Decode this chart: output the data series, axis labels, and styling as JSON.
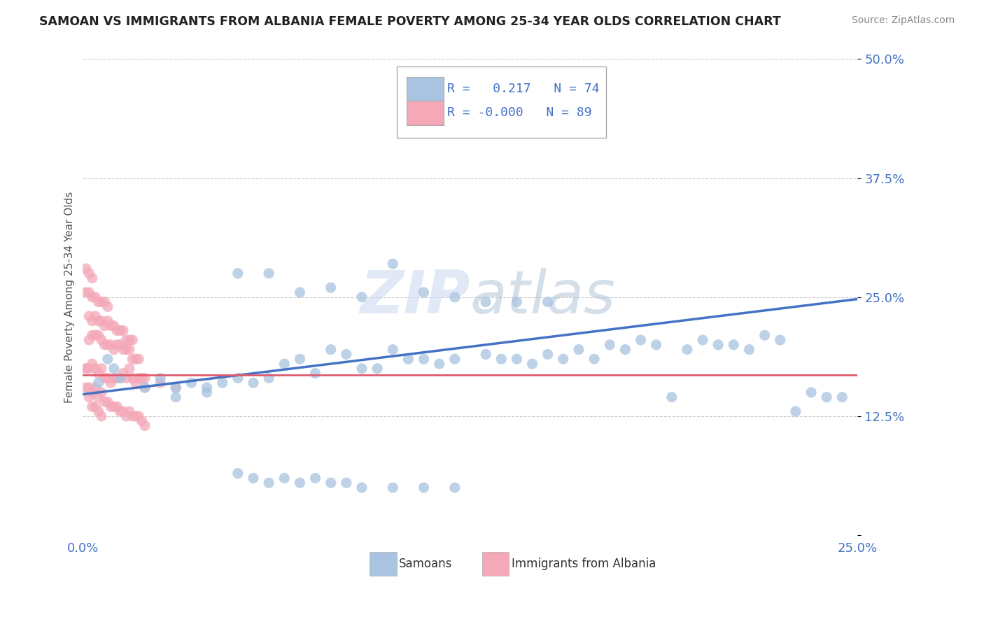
{
  "title": "SAMOAN VS IMMIGRANTS FROM ALBANIA FEMALE POVERTY AMONG 25-34 YEAR OLDS CORRELATION CHART",
  "source": "Source: ZipAtlas.com",
  "ylabel": "Female Poverty Among 25-34 Year Olds",
  "xlim": [
    0.0,
    0.25
  ],
  "ylim": [
    0.0,
    0.5
  ],
  "xticks": [
    0.0,
    0.05,
    0.1,
    0.15,
    0.2,
    0.25
  ],
  "xticklabels": [
    "0.0%",
    "",
    "",
    "",
    "",
    "25.0%"
  ],
  "yticks": [
    0.0,
    0.125,
    0.25,
    0.375,
    0.5
  ],
  "yticklabels": [
    "",
    "12.5%",
    "25.0%",
    "37.5%",
    "50.0%"
  ],
  "samoans_R": 0.217,
  "samoans_N": 74,
  "albania_R": -0.0,
  "albania_N": 89,
  "samoans_color": "#a8c4e0",
  "albania_color": "#f4a8b8",
  "trend_samoans_color": "#4472c4",
  "trend_albania_color": "#e05a6e",
  "legend_labels": [
    "Samoans",
    "Immigrants from Albania"
  ],
  "samoans_x": [
    0.005,
    0.008,
    0.01,
    0.012,
    0.02,
    0.025,
    0.03,
    0.035,
    0.04,
    0.045,
    0.05,
    0.055,
    0.06,
    0.065,
    0.07,
    0.075,
    0.08,
    0.085,
    0.09,
    0.095,
    0.1,
    0.105,
    0.11,
    0.115,
    0.12,
    0.13,
    0.135,
    0.14,
    0.145,
    0.15,
    0.155,
    0.16,
    0.165,
    0.17,
    0.175,
    0.18,
    0.185,
    0.19,
    0.195,
    0.2,
    0.205,
    0.21,
    0.215,
    0.22,
    0.225,
    0.23,
    0.235,
    0.24,
    0.245,
    0.05,
    0.06,
    0.07,
    0.08,
    0.09,
    0.1,
    0.11,
    0.12,
    0.13,
    0.14,
    0.15,
    0.03,
    0.04,
    0.05,
    0.055,
    0.06,
    0.065,
    0.07,
    0.075,
    0.08,
    0.085,
    0.09,
    0.1,
    0.11,
    0.12
  ],
  "samoans_y": [
    0.16,
    0.185,
    0.175,
    0.165,
    0.155,
    0.165,
    0.155,
    0.16,
    0.155,
    0.16,
    0.165,
    0.16,
    0.165,
    0.18,
    0.185,
    0.17,
    0.195,
    0.19,
    0.175,
    0.175,
    0.195,
    0.185,
    0.185,
    0.18,
    0.185,
    0.19,
    0.185,
    0.185,
    0.18,
    0.19,
    0.185,
    0.195,
    0.185,
    0.2,
    0.195,
    0.205,
    0.2,
    0.145,
    0.195,
    0.205,
    0.2,
    0.2,
    0.195,
    0.21,
    0.205,
    0.13,
    0.15,
    0.145,
    0.145,
    0.275,
    0.275,
    0.255,
    0.26,
    0.25,
    0.285,
    0.255,
    0.25,
    0.245,
    0.245,
    0.245,
    0.145,
    0.15,
    0.065,
    0.06,
    0.055,
    0.06,
    0.055,
    0.06,
    0.055,
    0.055,
    0.05,
    0.05,
    0.05,
    0.05
  ],
  "albania_x": [
    0.001,
    0.002,
    0.003,
    0.004,
    0.005,
    0.006,
    0.007,
    0.008,
    0.009,
    0.01,
    0.011,
    0.012,
    0.013,
    0.014,
    0.015,
    0.016,
    0.017,
    0.018,
    0.019,
    0.02,
    0.001,
    0.002,
    0.003,
    0.004,
    0.005,
    0.006,
    0.007,
    0.008,
    0.009,
    0.01,
    0.011,
    0.012,
    0.013,
    0.014,
    0.015,
    0.016,
    0.017,
    0.018,
    0.019,
    0.02,
    0.002,
    0.003,
    0.004,
    0.005,
    0.006,
    0.007,
    0.008,
    0.009,
    0.01,
    0.011,
    0.012,
    0.013,
    0.014,
    0.015,
    0.016,
    0.017,
    0.018,
    0.002,
    0.003,
    0.004,
    0.005,
    0.006,
    0.007,
    0.008,
    0.009,
    0.01,
    0.011,
    0.012,
    0.013,
    0.014,
    0.015,
    0.016,
    0.001,
    0.002,
    0.003,
    0.004,
    0.005,
    0.006,
    0.007,
    0.008,
    0.001,
    0.002,
    0.003,
    0.004,
    0.005,
    0.006,
    0.001,
    0.002,
    0.003,
    0.02,
    0.025,
    0.03
  ],
  "albania_y": [
    0.175,
    0.175,
    0.18,
    0.175,
    0.17,
    0.175,
    0.165,
    0.165,
    0.16,
    0.165,
    0.165,
    0.165,
    0.17,
    0.165,
    0.175,
    0.165,
    0.16,
    0.165,
    0.165,
    0.155,
    0.155,
    0.155,
    0.15,
    0.155,
    0.145,
    0.15,
    0.14,
    0.14,
    0.135,
    0.135,
    0.135,
    0.13,
    0.13,
    0.125,
    0.13,
    0.125,
    0.125,
    0.125,
    0.12,
    0.115,
    0.205,
    0.21,
    0.21,
    0.21,
    0.205,
    0.2,
    0.2,
    0.2,
    0.195,
    0.2,
    0.2,
    0.195,
    0.195,
    0.195,
    0.185,
    0.185,
    0.185,
    0.23,
    0.225,
    0.23,
    0.225,
    0.225,
    0.22,
    0.225,
    0.22,
    0.22,
    0.215,
    0.215,
    0.215,
    0.205,
    0.205,
    0.205,
    0.255,
    0.255,
    0.25,
    0.25,
    0.245,
    0.245,
    0.245,
    0.24,
    0.175,
    0.145,
    0.135,
    0.135,
    0.13,
    0.125,
    0.28,
    0.275,
    0.27,
    0.165,
    0.16,
    0.155
  ],
  "trend_sam_x0": 0.0,
  "trend_sam_x1": 0.25,
  "trend_sam_y0": 0.148,
  "trend_sam_y1": 0.248,
  "trend_alb_x0": 0.0,
  "trend_alb_x1": 0.25,
  "trend_alb_y0": 0.168,
  "trend_alb_y1": 0.168
}
